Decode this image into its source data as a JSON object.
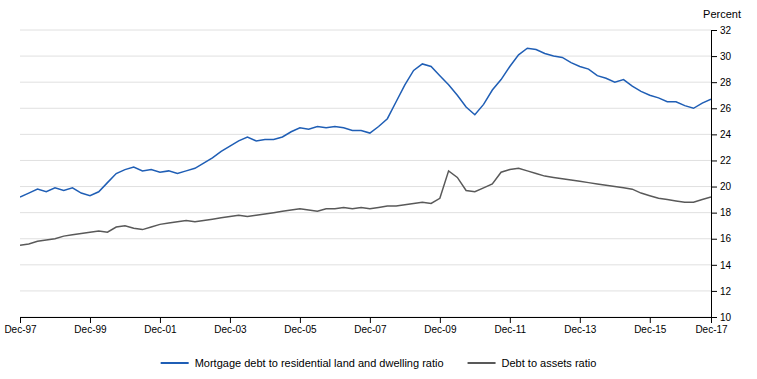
{
  "chart_data": {
    "type": "line",
    "ylabel": "Percent",
    "categories": [
      "Dec-97",
      null,
      null,
      null,
      null,
      null,
      null,
      null,
      "Dec-99",
      null,
      null,
      null,
      null,
      null,
      null,
      null,
      "Dec-01",
      null,
      null,
      null,
      null,
      null,
      null,
      null,
      "Dec-03",
      null,
      null,
      null,
      null,
      null,
      null,
      null,
      "Dec-05",
      null,
      null,
      null,
      null,
      null,
      null,
      null,
      "Dec-07",
      null,
      null,
      null,
      null,
      null,
      null,
      null,
      "Dec-09",
      null,
      null,
      null,
      null,
      null,
      null,
      null,
      "Dec-11",
      null,
      null,
      null,
      null,
      null,
      null,
      null,
      "Dec-13",
      null,
      null,
      null,
      null,
      null,
      null,
      null,
      "Dec-15",
      null,
      null,
      null,
      null,
      null,
      null,
      "Dec-17"
    ],
    "series": [
      {
        "name": "Mortgage debt to residential land and dwelling ratio",
        "color": "#1f5eb5",
        "values": [
          19.2,
          19.5,
          19.8,
          19.6,
          19.9,
          19.7,
          19.9,
          19.5,
          19.3,
          19.6,
          20.3,
          21.0,
          21.3,
          21.5,
          21.2,
          21.3,
          21.1,
          21.2,
          21.0,
          21.2,
          21.4,
          21.8,
          22.2,
          22.7,
          23.1,
          23.5,
          23.8,
          23.5,
          23.6,
          23.6,
          23.8,
          24.2,
          24.5,
          24.4,
          24.6,
          24.5,
          24.6,
          24.5,
          24.3,
          24.3,
          24.1,
          24.6,
          25.2,
          26.5,
          27.8,
          28.9,
          29.4,
          29.2,
          28.5,
          27.8,
          27.0,
          26.1,
          25.5,
          26.3,
          27.4,
          28.2,
          29.2,
          30.1,
          30.6,
          30.5,
          30.2,
          30.0,
          29.9,
          29.5,
          29.2,
          29.0,
          28.5,
          28.3,
          28.0,
          28.2,
          27.7,
          27.3,
          27.0,
          26.8,
          26.5,
          26.5,
          26.2,
          26.0,
          26.4,
          26.7
        ]
      },
      {
        "name": "Debt to assets ratio",
        "color": "#595959",
        "values": [
          15.5,
          15.6,
          15.8,
          15.9,
          16.0,
          16.2,
          16.3,
          16.4,
          16.5,
          16.6,
          16.5,
          16.9,
          17.0,
          16.8,
          16.7,
          16.9,
          17.1,
          17.2,
          17.3,
          17.4,
          17.3,
          17.4,
          17.5,
          17.6,
          17.7,
          17.8,
          17.7,
          17.8,
          17.9,
          18.0,
          18.1,
          18.2,
          18.3,
          18.2,
          18.1,
          18.3,
          18.3,
          18.4,
          18.3,
          18.4,
          18.3,
          18.4,
          18.5,
          18.5,
          18.6,
          18.7,
          18.8,
          18.7,
          19.1,
          21.2,
          20.7,
          19.7,
          19.6,
          19.9,
          20.2,
          21.1,
          21.3,
          21.4,
          21.2,
          21.0,
          20.8,
          20.7,
          20.6,
          20.5,
          20.4,
          20.3,
          20.2,
          20.1,
          20.0,
          19.9,
          19.8,
          19.5,
          19.3,
          19.1,
          19.0,
          18.9,
          18.8,
          18.8,
          19.0,
          19.2
        ]
      }
    ],
    "ylim": [
      10,
      32
    ],
    "yticks": [
      10,
      12,
      14,
      16,
      18,
      20,
      22,
      24,
      26,
      28,
      30,
      32
    ],
    "grid": true,
    "legend": "bottom"
  }
}
